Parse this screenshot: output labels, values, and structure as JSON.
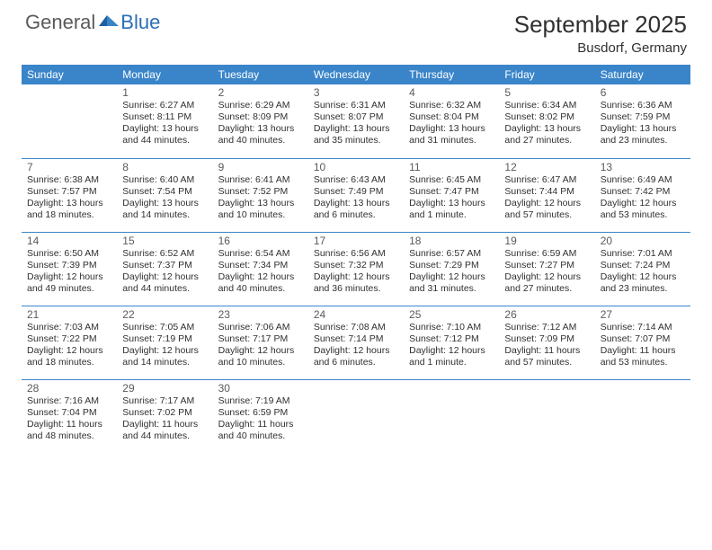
{
  "logo": {
    "general": "General",
    "blue": "Blue"
  },
  "title": "September 2025",
  "location": "Busdorf, Germany",
  "colors": {
    "header_bg": "#3a85c9",
    "header_text": "#ffffff",
    "body_text": "#303030",
    "daynum_text": "#5a5a5a",
    "logo_gray": "#5a5a5a",
    "logo_blue": "#2a6fb5",
    "border": "#3a85c9",
    "page_bg": "#ffffff"
  },
  "day_headers": [
    "Sunday",
    "Monday",
    "Tuesday",
    "Wednesday",
    "Thursday",
    "Friday",
    "Saturday"
  ],
  "weeks": [
    [
      null,
      {
        "n": "1",
        "sr": "Sunrise: 6:27 AM",
        "ss": "Sunset: 8:11 PM",
        "dl1": "Daylight: 13 hours",
        "dl2": "and 44 minutes."
      },
      {
        "n": "2",
        "sr": "Sunrise: 6:29 AM",
        "ss": "Sunset: 8:09 PM",
        "dl1": "Daylight: 13 hours",
        "dl2": "and 40 minutes."
      },
      {
        "n": "3",
        "sr": "Sunrise: 6:31 AM",
        "ss": "Sunset: 8:07 PM",
        "dl1": "Daylight: 13 hours",
        "dl2": "and 35 minutes."
      },
      {
        "n": "4",
        "sr": "Sunrise: 6:32 AM",
        "ss": "Sunset: 8:04 PM",
        "dl1": "Daylight: 13 hours",
        "dl2": "and 31 minutes."
      },
      {
        "n": "5",
        "sr": "Sunrise: 6:34 AM",
        "ss": "Sunset: 8:02 PM",
        "dl1": "Daylight: 13 hours",
        "dl2": "and 27 minutes."
      },
      {
        "n": "6",
        "sr": "Sunrise: 6:36 AM",
        "ss": "Sunset: 7:59 PM",
        "dl1": "Daylight: 13 hours",
        "dl2": "and 23 minutes."
      }
    ],
    [
      {
        "n": "7",
        "sr": "Sunrise: 6:38 AM",
        "ss": "Sunset: 7:57 PM",
        "dl1": "Daylight: 13 hours",
        "dl2": "and 18 minutes."
      },
      {
        "n": "8",
        "sr": "Sunrise: 6:40 AM",
        "ss": "Sunset: 7:54 PM",
        "dl1": "Daylight: 13 hours",
        "dl2": "and 14 minutes."
      },
      {
        "n": "9",
        "sr": "Sunrise: 6:41 AM",
        "ss": "Sunset: 7:52 PM",
        "dl1": "Daylight: 13 hours",
        "dl2": "and 10 minutes."
      },
      {
        "n": "10",
        "sr": "Sunrise: 6:43 AM",
        "ss": "Sunset: 7:49 PM",
        "dl1": "Daylight: 13 hours",
        "dl2": "and 6 minutes."
      },
      {
        "n": "11",
        "sr": "Sunrise: 6:45 AM",
        "ss": "Sunset: 7:47 PM",
        "dl1": "Daylight: 13 hours",
        "dl2": "and 1 minute."
      },
      {
        "n": "12",
        "sr": "Sunrise: 6:47 AM",
        "ss": "Sunset: 7:44 PM",
        "dl1": "Daylight: 12 hours",
        "dl2": "and 57 minutes."
      },
      {
        "n": "13",
        "sr": "Sunrise: 6:49 AM",
        "ss": "Sunset: 7:42 PM",
        "dl1": "Daylight: 12 hours",
        "dl2": "and 53 minutes."
      }
    ],
    [
      {
        "n": "14",
        "sr": "Sunrise: 6:50 AM",
        "ss": "Sunset: 7:39 PM",
        "dl1": "Daylight: 12 hours",
        "dl2": "and 49 minutes."
      },
      {
        "n": "15",
        "sr": "Sunrise: 6:52 AM",
        "ss": "Sunset: 7:37 PM",
        "dl1": "Daylight: 12 hours",
        "dl2": "and 44 minutes."
      },
      {
        "n": "16",
        "sr": "Sunrise: 6:54 AM",
        "ss": "Sunset: 7:34 PM",
        "dl1": "Daylight: 12 hours",
        "dl2": "and 40 minutes."
      },
      {
        "n": "17",
        "sr": "Sunrise: 6:56 AM",
        "ss": "Sunset: 7:32 PM",
        "dl1": "Daylight: 12 hours",
        "dl2": "and 36 minutes."
      },
      {
        "n": "18",
        "sr": "Sunrise: 6:57 AM",
        "ss": "Sunset: 7:29 PM",
        "dl1": "Daylight: 12 hours",
        "dl2": "and 31 minutes."
      },
      {
        "n": "19",
        "sr": "Sunrise: 6:59 AM",
        "ss": "Sunset: 7:27 PM",
        "dl1": "Daylight: 12 hours",
        "dl2": "and 27 minutes."
      },
      {
        "n": "20",
        "sr": "Sunrise: 7:01 AM",
        "ss": "Sunset: 7:24 PM",
        "dl1": "Daylight: 12 hours",
        "dl2": "and 23 minutes."
      }
    ],
    [
      {
        "n": "21",
        "sr": "Sunrise: 7:03 AM",
        "ss": "Sunset: 7:22 PM",
        "dl1": "Daylight: 12 hours",
        "dl2": "and 18 minutes."
      },
      {
        "n": "22",
        "sr": "Sunrise: 7:05 AM",
        "ss": "Sunset: 7:19 PM",
        "dl1": "Daylight: 12 hours",
        "dl2": "and 14 minutes."
      },
      {
        "n": "23",
        "sr": "Sunrise: 7:06 AM",
        "ss": "Sunset: 7:17 PM",
        "dl1": "Daylight: 12 hours",
        "dl2": "and 10 minutes."
      },
      {
        "n": "24",
        "sr": "Sunrise: 7:08 AM",
        "ss": "Sunset: 7:14 PM",
        "dl1": "Daylight: 12 hours",
        "dl2": "and 6 minutes."
      },
      {
        "n": "25",
        "sr": "Sunrise: 7:10 AM",
        "ss": "Sunset: 7:12 PM",
        "dl1": "Daylight: 12 hours",
        "dl2": "and 1 minute."
      },
      {
        "n": "26",
        "sr": "Sunrise: 7:12 AM",
        "ss": "Sunset: 7:09 PM",
        "dl1": "Daylight: 11 hours",
        "dl2": "and 57 minutes."
      },
      {
        "n": "27",
        "sr": "Sunrise: 7:14 AM",
        "ss": "Sunset: 7:07 PM",
        "dl1": "Daylight: 11 hours",
        "dl2": "and 53 minutes."
      }
    ],
    [
      {
        "n": "28",
        "sr": "Sunrise: 7:16 AM",
        "ss": "Sunset: 7:04 PM",
        "dl1": "Daylight: 11 hours",
        "dl2": "and 48 minutes."
      },
      {
        "n": "29",
        "sr": "Sunrise: 7:17 AM",
        "ss": "Sunset: 7:02 PM",
        "dl1": "Daylight: 11 hours",
        "dl2": "and 44 minutes."
      },
      {
        "n": "30",
        "sr": "Sunrise: 7:19 AM",
        "ss": "Sunset: 6:59 PM",
        "dl1": "Daylight: 11 hours",
        "dl2": "and 40 minutes."
      },
      null,
      null,
      null,
      null
    ]
  ]
}
